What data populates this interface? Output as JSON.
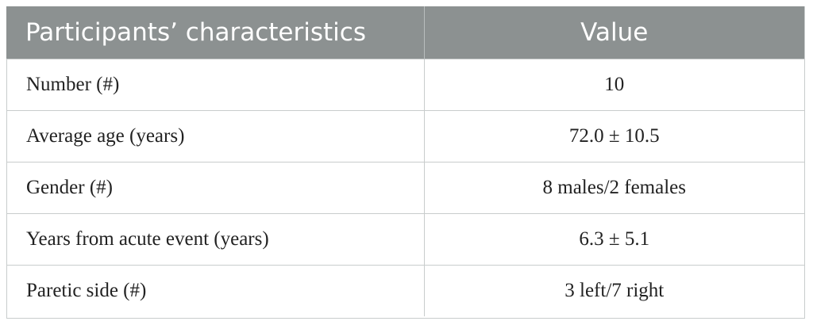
{
  "table": {
    "headers": [
      "Participants’ characteristics",
      "Value"
    ],
    "rows": [
      [
        "Number (#)",
        "10"
      ],
      [
        "Average age (years)",
        "72.0 ± 10.5"
      ],
      [
        "Gender (#)",
        "8 males/2 females"
      ],
      [
        "Years from acute event (years)",
        "6.3 ± 5.1"
      ],
      [
        "Paretic side (#)",
        "3 left/7 right"
      ]
    ]
  },
  "colors": {
    "header_background": "#8c9191",
    "header_text": "#ffffff",
    "border": "#c8cccc"
  }
}
